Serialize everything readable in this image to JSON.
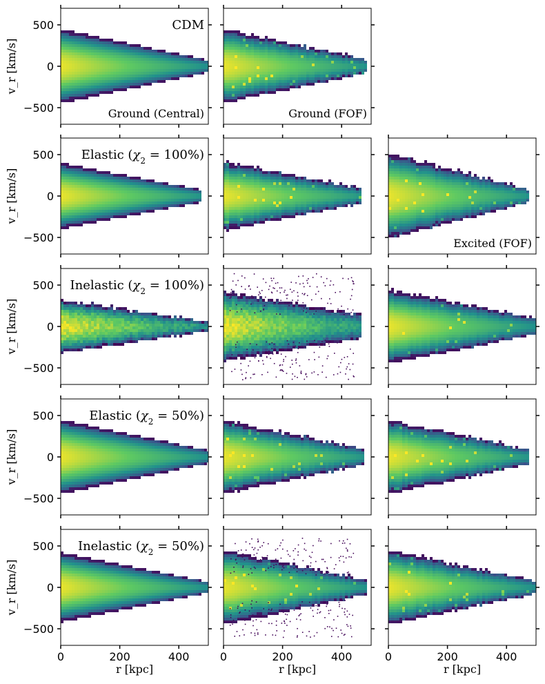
{
  "figure": {
    "xlabel": "r [kpc]",
    "ylabel": "v_r [km/s]",
    "xlim": [
      0,
      500
    ],
    "ylim": [
      -700,
      700
    ],
    "x_ticks": [
      0,
      200,
      400
    ],
    "y_ticks": [
      500,
      0,
      -500
    ],
    "colormap": [
      "#440154",
      "#3b528b",
      "#21918c",
      "#5ec962",
      "#fde725"
    ]
  },
  "chart_data": {
    "type": "heatmap",
    "description_units": "phase-space density of radial velocity vs radius",
    "rows": [
      {
        "title": "CDM",
        "panels": [
          {
            "label": "Ground (Central)",
            "model": "smooth",
            "vmax_at_r0": 450,
            "vmax_at_r500": 75,
            "outer_r": 500,
            "scatter": 0
          },
          {
            "label": "Ground (FOF)",
            "model": "clumpy",
            "vmax_at_r0": 450,
            "vmax_at_r500": 75,
            "outer_r": 490,
            "scatter": 0
          },
          null
        ]
      },
      {
        "title_prefix": "Elastic (",
        "title_math": "χ",
        "title_sub": "2",
        "title_suffix": " = 100%)",
        "panels": [
          {
            "label": "",
            "model": "smooth",
            "vmax_at_r0": 400,
            "vmax_at_r500": 60,
            "outer_r": 480,
            "scatter": 0
          },
          {
            "label": "",
            "model": "clumpy",
            "vmax_at_r0": 420,
            "vmax_at_r500": 70,
            "outer_r": 470,
            "scatter": 0
          },
          {
            "label": "Excited (FOF)",
            "model": "clumpy",
            "vmax_at_r0": 520,
            "vmax_at_r500": 60,
            "outer_r": 480,
            "scatter": 0
          }
        ]
      },
      {
        "title_prefix": "Inelastic (",
        "title_math": "χ",
        "title_sub": "2",
        "title_suffix": " = 100%)",
        "panels": [
          {
            "label": "",
            "model": "noisy",
            "vmax_at_r0": 330,
            "vmax_at_r500": 60,
            "outer_r": 500,
            "scatter": 0
          },
          {
            "label": "",
            "model": "noisy",
            "vmax_at_r0": 420,
            "vmax_at_r500": 120,
            "outer_r": 470,
            "scatter": 650
          },
          {
            "label": "",
            "model": "clumpy",
            "vmax_at_r0": 450,
            "vmax_at_r500": 100,
            "outer_r": 500,
            "scatter": 0
          }
        ]
      },
      {
        "title_prefix": "Elastic (",
        "title_math": "χ",
        "title_sub": "2",
        "title_suffix": " = 50%)",
        "panels": [
          {
            "label": "",
            "model": "smooth",
            "vmax_at_r0": 450,
            "vmax_at_r500": 80,
            "outer_r": 500,
            "scatter": 0
          },
          {
            "label": "",
            "model": "clumpy",
            "vmax_at_r0": 450,
            "vmax_at_r500": 80,
            "outer_r": 480,
            "scatter": 0
          },
          {
            "label": "",
            "model": "clumpy",
            "vmax_at_r0": 450,
            "vmax_at_r500": 80,
            "outer_r": 480,
            "scatter": 0
          }
        ]
      },
      {
        "title_prefix": "Inelastic (",
        "title_math": "χ",
        "title_sub": "2",
        "title_suffix": " = 50%)",
        "panels": [
          {
            "label": "",
            "model": "smooth",
            "vmax_at_r0": 420,
            "vmax_at_r500": 70,
            "outer_r": 500,
            "scatter": 0
          },
          {
            "label": "",
            "model": "clumpy",
            "vmax_at_r0": 450,
            "vmax_at_r500": 80,
            "outer_r": 490,
            "scatter": 600
          },
          {
            "label": "",
            "model": "clumpy",
            "vmax_at_r0": 450,
            "vmax_at_r500": 80,
            "outer_r": 500,
            "scatter": 0
          }
        ]
      }
    ]
  }
}
